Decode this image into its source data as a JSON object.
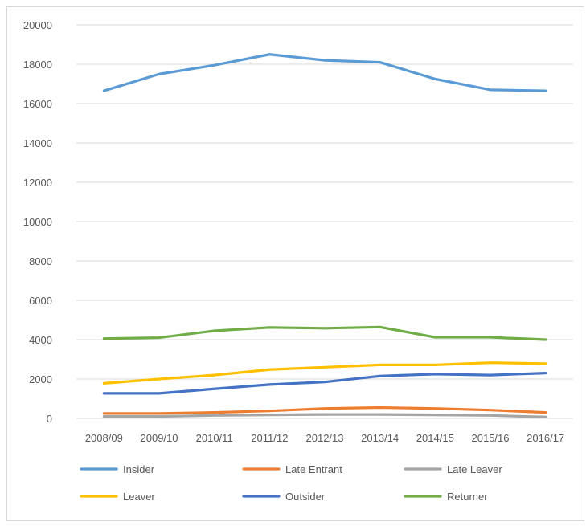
{
  "chart_data": {
    "type": "line",
    "title": "",
    "xlabel": "",
    "ylabel": "",
    "ylim": [
      0,
      20000
    ],
    "y_ticks": [
      0,
      2000,
      4000,
      6000,
      8000,
      10000,
      12000,
      14000,
      16000,
      18000,
      20000
    ],
    "y_tick_labels": [
      "0",
      "2000",
      "4000",
      "6000",
      "8000",
      "10000",
      "12000",
      "14000",
      "16000",
      "18000",
      "20000"
    ],
    "grid": true,
    "legend_position": "bottom",
    "categories": [
      "2008/09",
      "2009/10",
      "2010/11",
      "2011/12",
      "2012/13",
      "2013/14",
      "2014/15",
      "2015/16",
      "2016/17"
    ],
    "series": [
      {
        "name": "Insider",
        "color": "#5B9BD5",
        "values": [
          16650,
          17500,
          17950,
          18500,
          18200,
          18100,
          17250,
          16700,
          16650
        ]
      },
      {
        "name": "Late Entrant",
        "color": "#ED7D31",
        "values": [
          250,
          250,
          300,
          380,
          500,
          550,
          500,
          420,
          300
        ]
      },
      {
        "name": "Late Leaver",
        "color": "#A5A5A5",
        "values": [
          100,
          100,
          150,
          180,
          200,
          200,
          180,
          150,
          70
        ]
      },
      {
        "name": "Leaver",
        "color": "#FFC000",
        "values": [
          1780,
          2000,
          2200,
          2480,
          2600,
          2720,
          2720,
          2830,
          2780
        ]
      },
      {
        "name": "Outsider",
        "color": "#4472C4",
        "values": [
          1270,
          1270,
          1500,
          1720,
          1850,
          2150,
          2250,
          2200,
          2300
        ]
      },
      {
        "name": "Returner",
        "color": "#70AD47",
        "values": [
          4050,
          4100,
          4450,
          4620,
          4580,
          4640,
          4120,
          4120,
          4000
        ]
      }
    ]
  }
}
